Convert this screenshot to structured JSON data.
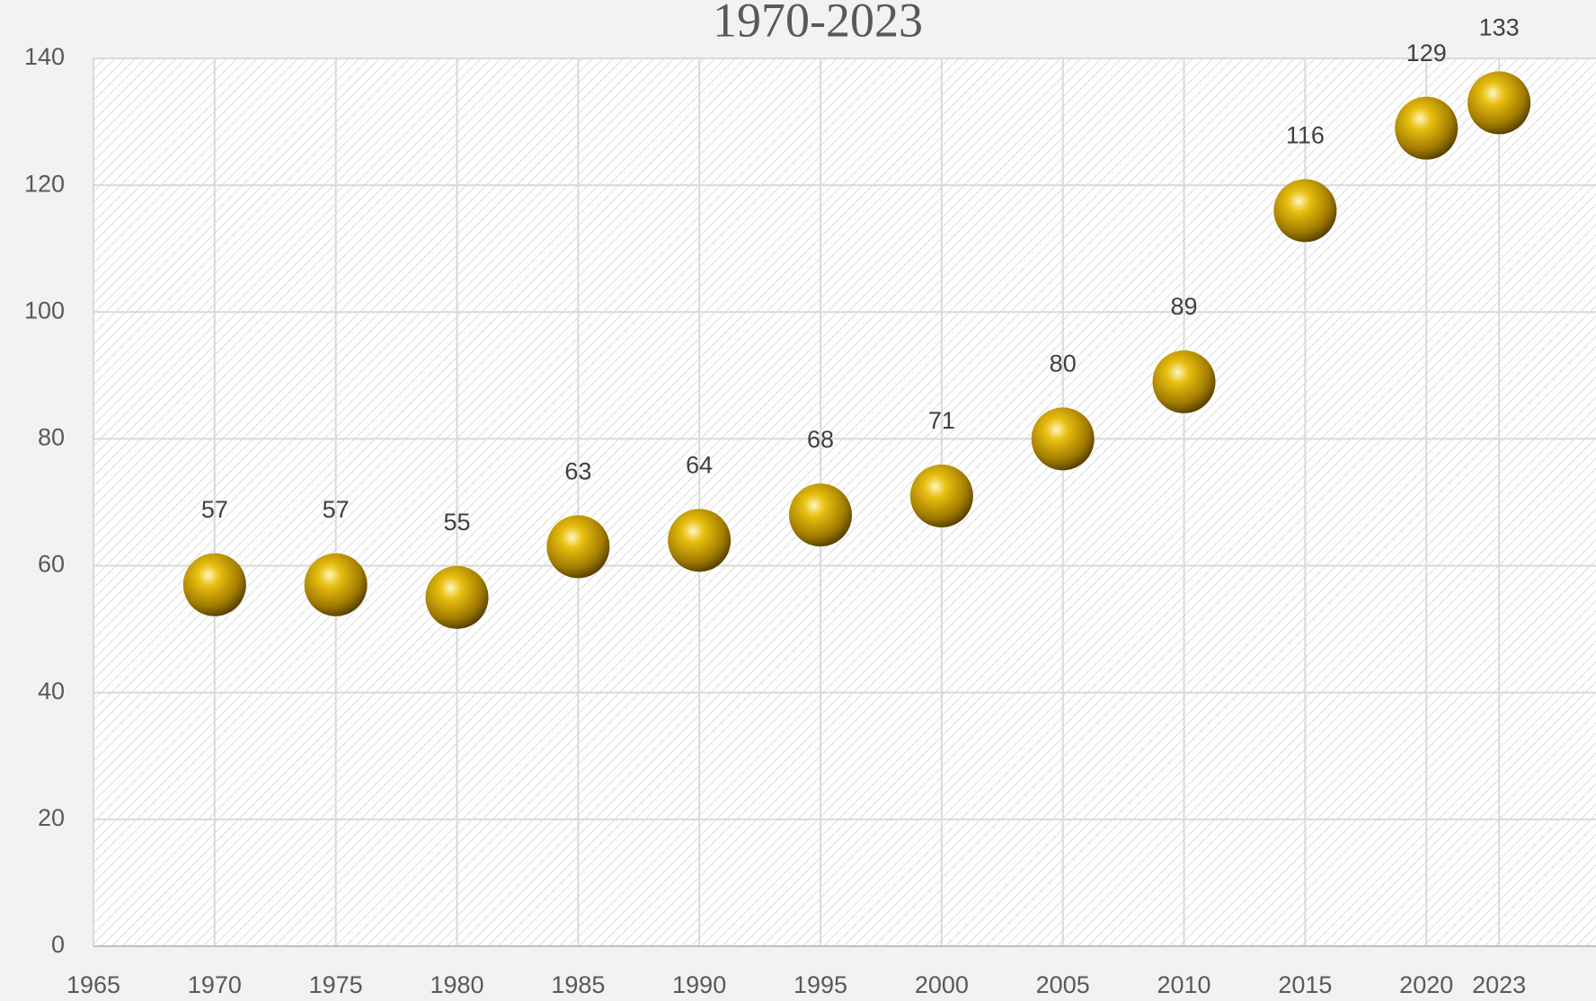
{
  "chart_data": {
    "type": "scatter",
    "title": "1970-2023",
    "x": [
      1970,
      1975,
      1980,
      1985,
      1990,
      1995,
      2000,
      2005,
      2010,
      2015,
      2020,
      2023
    ],
    "series": [
      {
        "color": "#c9a000",
        "values": [
          57,
          57,
          55,
          63,
          64,
          68,
          71,
          80,
          89,
          116,
          129,
          133
        ]
      }
    ],
    "xlim": [
      1965,
      2027
    ],
    "xticks": [
      1965,
      1970,
      1975,
      1980,
      1985,
      1990,
      1995,
      2000,
      2005,
      2010,
      2015,
      2020,
      2023
    ],
    "ylim": [
      0,
      140
    ],
    "yticks": [
      0,
      20,
      40,
      60,
      80,
      100,
      120,
      140
    ],
    "grid": true
  }
}
